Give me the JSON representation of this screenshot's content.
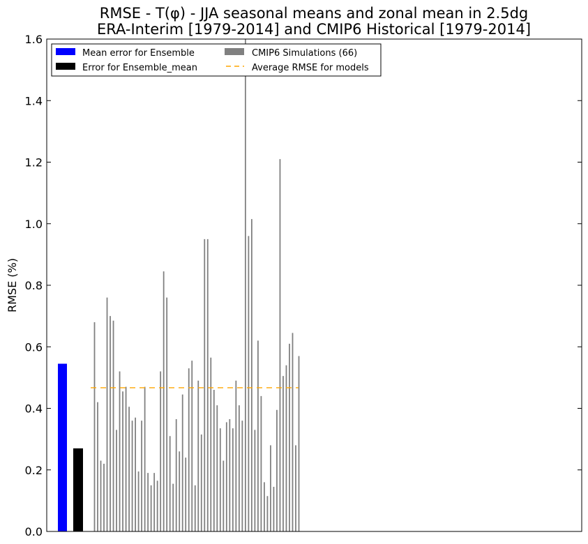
{
  "chart_data": {
    "type": "bar",
    "title_line1": "RMSE - T(φ) - JJA seasonal means and zonal mean in 2.5dg",
    "title_line2": "ERA-Interim [1979-2014] and CMIP6 Historical [1979-2014]",
    "xlabel": "",
    "ylabel": "RMSE (%)",
    "ylim": [
      0,
      1.6
    ],
    "yticks": [
      "0.0",
      "0.2",
      "0.4",
      "0.6",
      "0.8",
      "1.0",
      "1.2",
      "1.4",
      "1.6"
    ],
    "legend": {
      "location": "upper-left",
      "entries": [
        {
          "label": "Mean error for Ensemble",
          "color": "#0000ff",
          "kind": "patch"
        },
        {
          "label": "Error for Ensemble_mean",
          "color": "#000000",
          "kind": "patch"
        },
        {
          "label": "CMIP6 Simulations (66)",
          "color": "#808080",
          "kind": "patch"
        },
        {
          "label": "Average RMSE for models",
          "color": "#ffa500",
          "kind": "dash"
        }
      ]
    },
    "series": [
      {
        "name": "Mean error for Ensemble",
        "color": "#0000ff",
        "values": [
          0.545
        ]
      },
      {
        "name": "Error for Ensemble_mean",
        "color": "#000000",
        "values": [
          0.27
        ]
      },
      {
        "name": "CMIP6 Simulations (66)",
        "color": "#808080",
        "values": [
          0.68,
          0.42,
          0.23,
          0.22,
          0.76,
          0.7,
          0.685,
          0.33,
          0.52,
          0.455,
          0.47,
          0.405,
          0.36,
          0.37,
          0.195,
          0.36,
          0.47,
          0.19,
          0.15,
          0.19,
          0.165,
          0.52,
          0.845,
          0.76,
          0.31,
          0.155,
          0.365,
          0.26,
          0.445,
          0.24,
          0.53,
          0.555,
          0.15,
          0.49,
          0.315,
          0.95,
          0.95,
          0.565,
          0.46,
          0.41,
          0.335,
          0.23,
          0.355,
          0.365,
          0.335,
          0.49,
          0.41,
          0.36,
          1.6,
          0.96,
          1.015,
          0.33,
          0.62,
          0.44,
          0.16,
          0.115,
          0.28,
          0.145,
          0.395,
          1.21,
          0.505,
          0.54,
          0.61,
          0.645,
          0.28,
          0.57
        ]
      }
    ],
    "average_rmse": 0.467
  }
}
